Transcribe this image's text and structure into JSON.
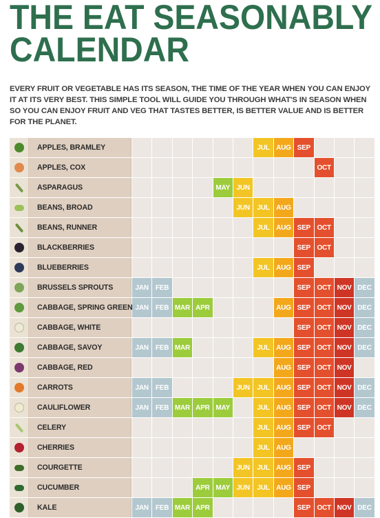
{
  "title_lines": [
    "THE EAT SEASONABLY",
    "CALENDAR"
  ],
  "intro": "EVERY FRUIT OR VEGETABLE HAS ITS SEASON, THE TIME OF THE YEAR WHEN YOU CAN ENJOY IT AT ITS VERY BEST.  THIS SIMPLE TOOL WILL GUIDE YOU THROUGH WHAT'S IN SEASON WHEN SO YOU CAN ENJOY FRUIT AND VEG THAT TASTES BETTER, IS BETTER VALUE AND IS BETTER FOR THE PLANET.",
  "months": [
    "JAN",
    "FEB",
    "MAR",
    "APR",
    "MAY",
    "JUN",
    "JUL",
    "AUG",
    "SEP",
    "OCT",
    "NOV",
    "DEC"
  ],
  "month_colors": {
    "JAN": "#b3c7cf",
    "FEB": "#b3c7cf",
    "MAR": "#9ccc3c",
    "APR": "#9ccc3c",
    "MAY": "#9ccc3c",
    "JUN": "#f2c525",
    "JUL": "#f2c525",
    "AUG": "#f3a81c",
    "SEP": "#e4502d",
    "OCT": "#e4502d",
    "NOV": "#cf3525",
    "DEC": "#b3c7cf"
  },
  "colors": {
    "title": "#2e6f4e",
    "name_band": "#dfcfc0",
    "empty_cell": "#ece7e2"
  },
  "rows": [
    {
      "name": "APPLES, BRAMLEY",
      "icon": "green-apple-icon",
      "icon_color": "#4d8a2c",
      "months": [
        "JUL",
        "AUG",
        "SEP"
      ]
    },
    {
      "name": "APPLES, COX",
      "icon": "red-apple-icon",
      "icon_color": "#e08a4e",
      "months": [
        "OCT"
      ]
    },
    {
      "name": "ASPARAGUS",
      "icon": "asparagus-icon",
      "icon_color": "#7a9a4a",
      "months": [
        "MAY",
        "JUN"
      ]
    },
    {
      "name": "BEANS, BROAD",
      "icon": "broad-bean-icon",
      "icon_color": "#9bc25a",
      "months": [
        "JUN",
        "JUL",
        "AUG"
      ]
    },
    {
      "name": "BEANS, RUNNER",
      "icon": "runner-bean-icon",
      "icon_color": "#6f8f3e",
      "months": [
        "JUL",
        "AUG",
        "SEP",
        "OCT"
      ]
    },
    {
      "name": "BLACKBERRIES",
      "icon": "blackberry-icon",
      "icon_color": "#2a2230",
      "months": [
        "SEP",
        "OCT"
      ]
    },
    {
      "name": "BLUEBERRIES",
      "icon": "blueberry-icon",
      "icon_color": "#2d3b5a",
      "months": [
        "JUL",
        "AUG",
        "SEP"
      ]
    },
    {
      "name": "BRUSSELS SPROUTS",
      "icon": "sprouts-icon",
      "icon_color": "#7fa55a",
      "months": [
        "JAN",
        "FEB",
        "SEP",
        "OCT",
        "NOV",
        "DEC"
      ]
    },
    {
      "name": "CABBAGE, SPRING GREEN",
      "icon": "spring-cabbage-icon",
      "icon_color": "#5f9a3c",
      "months": [
        "JAN",
        "FEB",
        "MAR",
        "APR",
        "AUG",
        "SEP",
        "OCT",
        "NOV",
        "DEC"
      ]
    },
    {
      "name": "CABBAGE, WHITE",
      "icon": "white-cabbage-icon",
      "icon_color": "#ece9d6",
      "months": [
        "SEP",
        "OCT",
        "NOV",
        "DEC"
      ]
    },
    {
      "name": "CABBAGE, SAVOY",
      "icon": "savoy-cabbage-icon",
      "icon_color": "#3e7a32",
      "months": [
        "JAN",
        "FEB",
        "MAR",
        "JUL",
        "AUG",
        "SEP",
        "OCT",
        "NOV",
        "DEC"
      ]
    },
    {
      "name": "CABBAGE, RED",
      "icon": "red-cabbage-icon",
      "icon_color": "#7b3a6e",
      "months": [
        "AUG",
        "SEP",
        "OCT",
        "NOV"
      ]
    },
    {
      "name": "CARROTS",
      "icon": "carrot-icon",
      "icon_color": "#e27a2b",
      "months": [
        "JAN",
        "FEB",
        "JUN",
        "JUL",
        "AUG",
        "SEP",
        "OCT",
        "NOV",
        "DEC"
      ]
    },
    {
      "name": "CAULIFLOWER",
      "icon": "cauliflower-icon",
      "icon_color": "#f0ead0",
      "months": [
        "JAN",
        "FEB",
        "MAR",
        "APR",
        "MAY",
        "JUL",
        "AUG",
        "SEP",
        "OCT",
        "NOV",
        "DEC"
      ]
    },
    {
      "name": "CELERY",
      "icon": "celery-icon",
      "icon_color": "#a8c870",
      "months": [
        "JUL",
        "AUG",
        "SEP",
        "OCT"
      ]
    },
    {
      "name": "CHERRIES",
      "icon": "cherry-icon",
      "icon_color": "#b3222e",
      "months": [
        "JUL",
        "AUG"
      ]
    },
    {
      "name": "COURGETTE",
      "icon": "courgette-icon",
      "icon_color": "#3f6e2a",
      "months": [
        "JUN",
        "JUL",
        "AUG",
        "SEP"
      ]
    },
    {
      "name": "CUCUMBER",
      "icon": "cucumber-icon",
      "icon_color": "#2f6a2f",
      "months": [
        "APR",
        "MAY",
        "JUN",
        "JUL",
        "AUG",
        "SEP"
      ]
    },
    {
      "name": "KALE",
      "icon": "kale-icon",
      "icon_color": "#2f5f2a",
      "months": [
        "JAN",
        "FEB",
        "MAR",
        "APR",
        "SEP",
        "OCT",
        "NOV",
        "DEC"
      ]
    }
  ]
}
